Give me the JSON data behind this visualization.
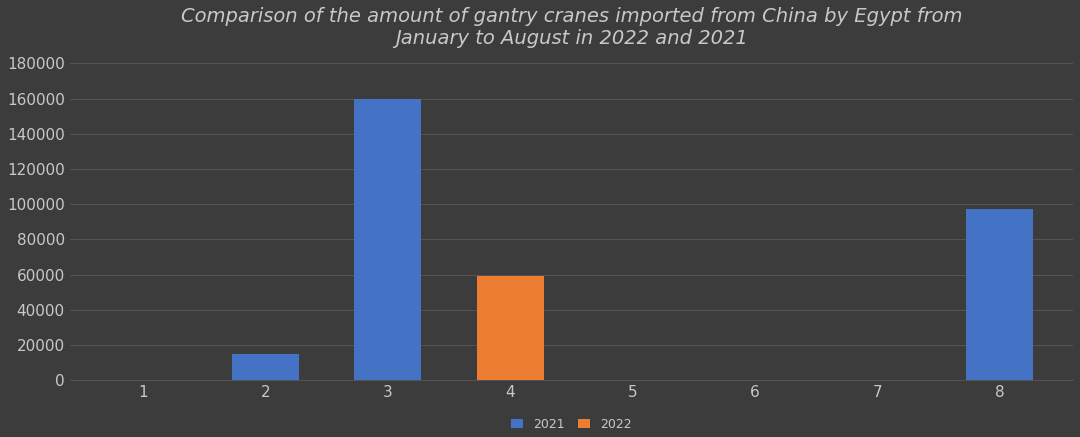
{
  "title": "Comparison of the amount of gantry cranes imported from China by Egypt from\nJanuary to August in 2022 and 2021",
  "months": [
    1,
    2,
    3,
    4,
    5,
    6,
    7,
    8
  ],
  "data_2021": [
    0,
    15000,
    160000,
    0,
    0,
    0,
    0,
    97000
  ],
  "data_2022": [
    0,
    0,
    0,
    59000,
    0,
    0,
    0,
    0
  ],
  "color_2021": "#4472C4",
  "color_2022": "#ED7D31",
  "bg_color": "#3C3C3C",
  "plot_bg_color": "#3C3C3C",
  "text_color": "#C8C8C8",
  "grid_color": "#555555",
  "ylim": [
    0,
    180000
  ],
  "yticks": [
    0,
    20000,
    40000,
    60000,
    80000,
    100000,
    120000,
    140000,
    160000,
    180000
  ],
  "bar_width": 0.55,
  "title_fontsize": 14,
  "legend_labels": [
    "2021",
    "2022"
  ],
  "legend_fontsize": 9
}
